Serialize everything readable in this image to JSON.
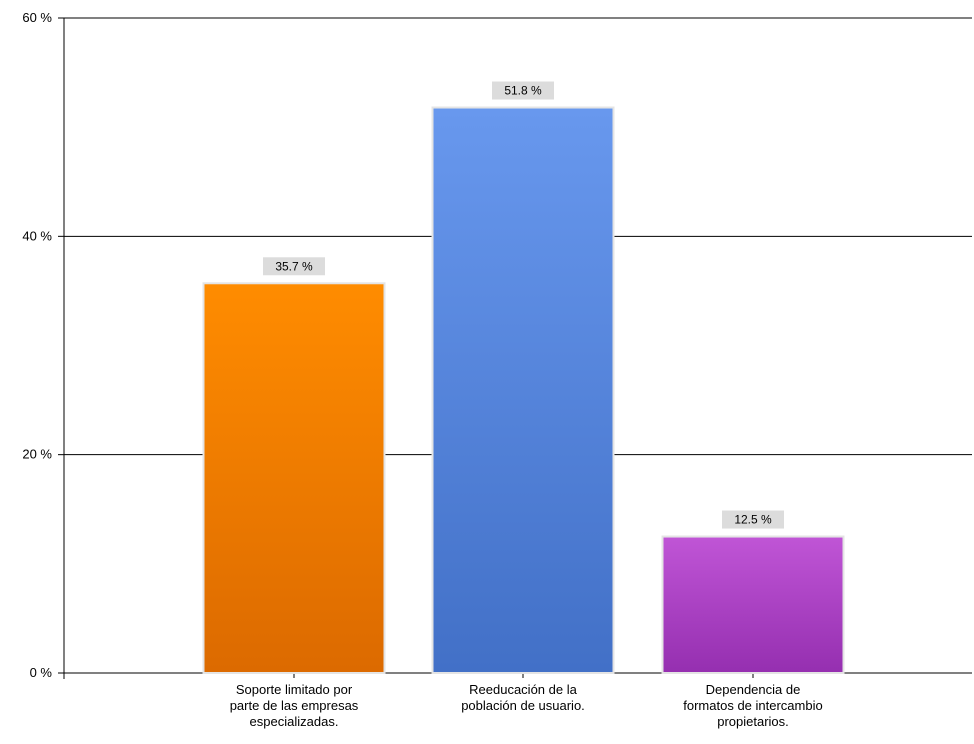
{
  "chart_data": {
    "type": "bar",
    "categories": [
      [
        "Soporte limitado por",
        "parte de las empresas",
        "especializadas."
      ],
      [
        "Reeducación de la",
        "población de usuario."
      ],
      [
        "Dependencia de",
        "formatos de intercambio",
        "propietarios."
      ]
    ],
    "values": [
      35.7,
      51.8,
      12.5
    ],
    "data_labels": [
      "35.7 %",
      "51.8 %",
      "12.5 %"
    ],
    "title": "",
    "xlabel": "",
    "ylabel": "",
    "ylim": [
      0,
      60
    ],
    "yticks": [
      0,
      20,
      40,
      60
    ],
    "ytick_labels": [
      "0 %",
      "20 %",
      "40 %",
      "60 %"
    ],
    "grid": true,
    "legend": "none",
    "colors": {
      "bars": [
        {
          "top": "#ff8c00",
          "bottom": "#dc6a00"
        },
        {
          "top": "#6898ee",
          "bottom": "#4270c7"
        },
        {
          "top": "#c055d6",
          "bottom": "#952fb0"
        }
      ],
      "bar_border": "#e4e4e4",
      "axis": "#000000",
      "grid": "#000000",
      "label_box": "#dcdcdc"
    }
  }
}
